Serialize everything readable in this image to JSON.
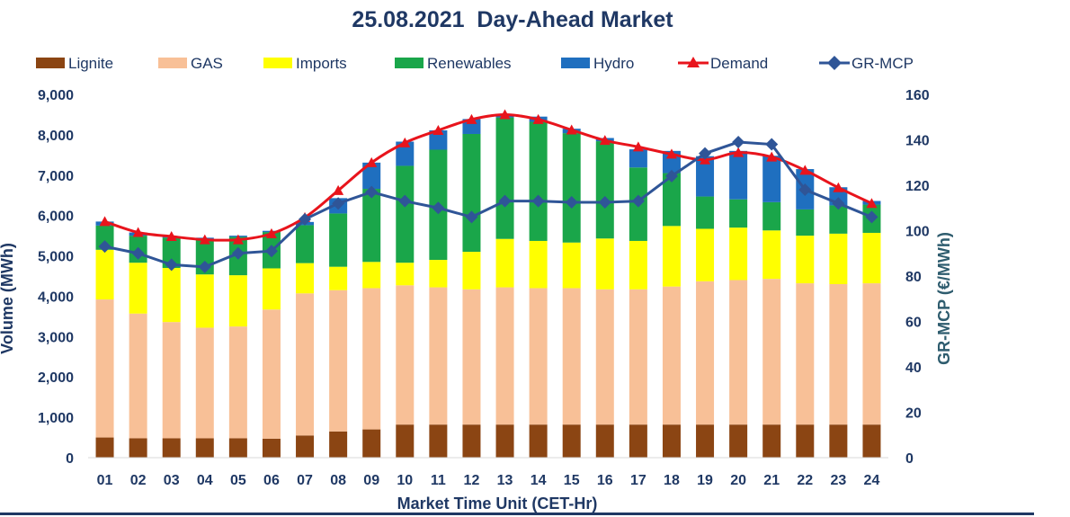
{
  "chart_data": {
    "type": "bar",
    "stacked": true,
    "title": "25.08.2021  Day-Ahead Market",
    "xlabel": "Market Time Unit (CET-Hr)",
    "ylabel": "Volume (MWh)",
    "y2label": "GR-MCP (€/MWh)",
    "ylim": [
      0,
      9000
    ],
    "y2lim": [
      0,
      160
    ],
    "yticks": [
      "0",
      "1,000",
      "2,000",
      "3,000",
      "4,000",
      "5,000",
      "6,000",
      "7,000",
      "8,000",
      "9,000"
    ],
    "yticks_values": [
      0,
      1000,
      2000,
      3000,
      4000,
      5000,
      6000,
      7000,
      8000,
      9000
    ],
    "y2ticks": [
      "0",
      "20",
      "40",
      "60",
      "80",
      "100",
      "120",
      "140",
      "160"
    ],
    "y2ticks_values": [
      0,
      20,
      40,
      60,
      80,
      100,
      120,
      140,
      160
    ],
    "categories": [
      "01",
      "02",
      "03",
      "04",
      "05",
      "06",
      "07",
      "08",
      "09",
      "10",
      "11",
      "12",
      "13",
      "14",
      "15",
      "16",
      "17",
      "18",
      "19",
      "20",
      "21",
      "22",
      "23",
      "24"
    ],
    "series": [
      {
        "name": "Lignite",
        "color": "#8B4513",
        "values": [
          500,
          480,
          480,
          480,
          480,
          470,
          550,
          650,
          700,
          820,
          820,
          820,
          820,
          820,
          820,
          820,
          820,
          820,
          820,
          820,
          820,
          820,
          820,
          820
        ]
      },
      {
        "name": "GAS",
        "color": "#F8C097",
        "values": [
          3420,
          3090,
          2880,
          2740,
          2770,
          3200,
          3520,
          3500,
          3500,
          3450,
          3400,
          3350,
          3400,
          3380,
          3380,
          3350,
          3350,
          3420,
          3550,
          3580,
          3610,
          3500,
          3480,
          3500
        ]
      },
      {
        "name": "Imports",
        "color": "#FFFF00",
        "values": [
          1230,
          1260,
          1340,
          1320,
          1270,
          1020,
          750,
          580,
          650,
          560,
          680,
          930,
          1200,
          1170,
          1130,
          1260,
          1200,
          1500,
          1300,
          1300,
          1200,
          1180,
          1250,
          1250
        ]
      },
      {
        "name": "Renewables",
        "color": "#1AA64A",
        "values": [
          600,
          670,
          750,
          860,
          950,
          900,
          940,
          1320,
          1810,
          2400,
          2730,
          2920,
          3010,
          2950,
          2710,
          2410,
          1820,
          1310,
          800,
          700,
          700,
          650,
          700,
          700
        ]
      },
      {
        "name": "Hydro",
        "color": "#1F6FBF",
        "values": [
          100,
          80,
          30,
          50,
          30,
          30,
          80,
          380,
          650,
          600,
          480,
          370,
          70,
          130,
          110,
          80,
          450,
          550,
          1000,
          1200,
          1150,
          1000,
          450,
          90
        ]
      }
    ],
    "lines": [
      {
        "name": "Demand",
        "axis": "left",
        "color": "#E8141C",
        "marker": "triangle",
        "values": [
          5850,
          5580,
          5480,
          5400,
          5400,
          5550,
          5950,
          6620,
          7310,
          7800,
          8110,
          8380,
          8500,
          8380,
          8120,
          7860,
          7700,
          7520,
          7380,
          7560,
          7450,
          7120,
          6690,
          6300
        ]
      },
      {
        "name": "GR-MCP",
        "axis": "right",
        "color": "#2F5597",
        "marker": "diamond",
        "values": [
          93,
          90,
          85,
          84,
          90,
          91,
          105,
          112,
          117,
          113,
          110,
          106,
          113,
          113,
          112.5,
          112.5,
          113,
          124,
          134,
          139,
          138,
          118,
          112,
          106
        ]
      }
    ],
    "legend": [
      "Lignite",
      "GAS",
      "Imports",
      "Renewables",
      "Hydro",
      "Demand",
      "GR-MCP"
    ],
    "legend_position": "top",
    "grid": false
  }
}
